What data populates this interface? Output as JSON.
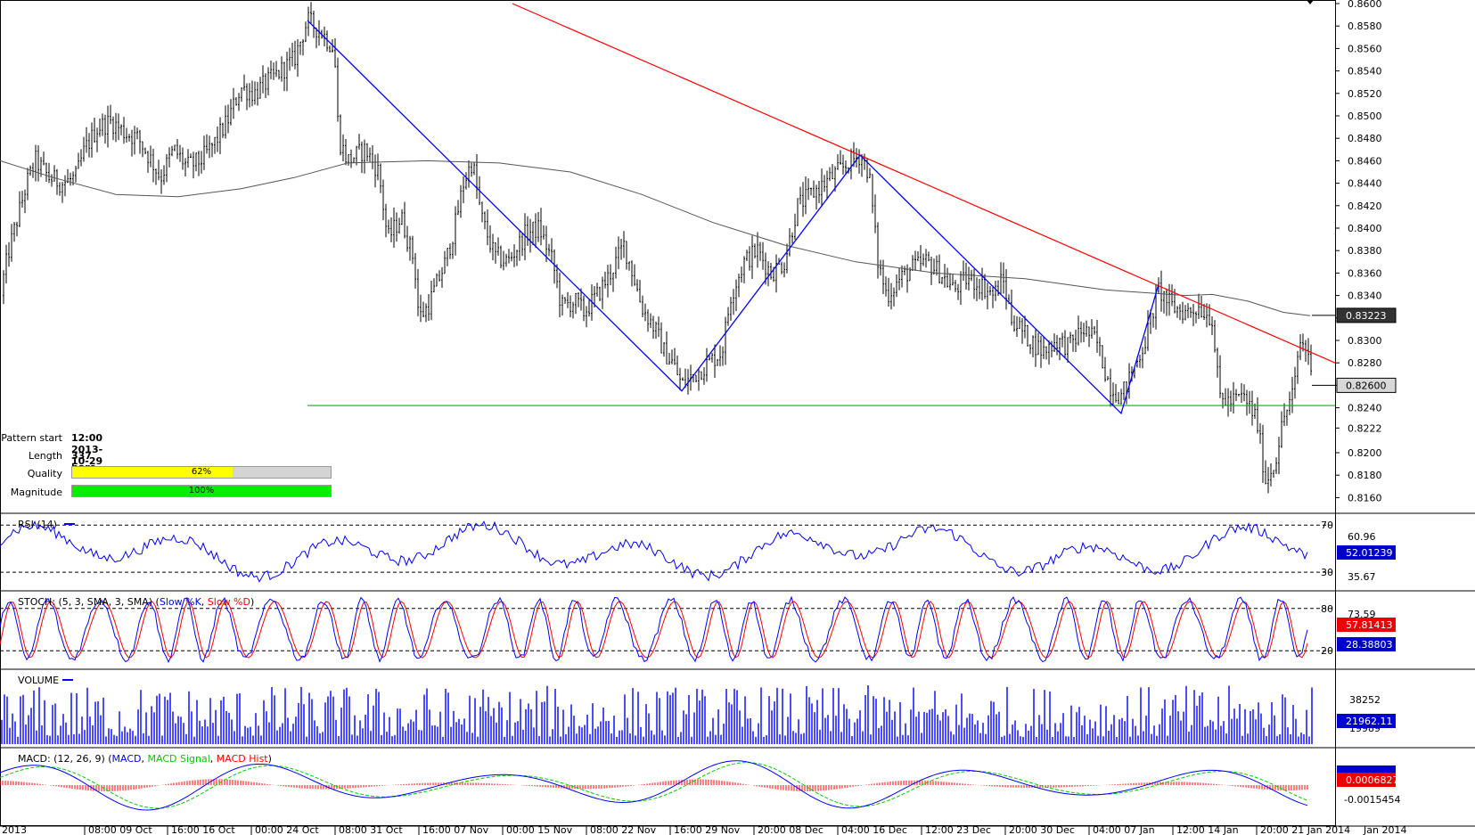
{
  "pattern_info": {
    "start_label": "Pattern start",
    "start_value": "12:00 2013-10-29",
    "length_label": "Length",
    "length_value": "337 bars",
    "quality_label": "Quality",
    "quality_value": "62%",
    "quality_fraction": 0.62,
    "quality_color": "#ffff00",
    "magnitude_label": "Magnitude",
    "magnitude_value": "100%",
    "magnitude_fraction": 1.0,
    "magnitude_color": "#00ee00"
  },
  "chart_data": [
    {
      "type": "candlestick",
      "name": "price",
      "ylim": [
        0.815,
        0.86
      ],
      "y_ticks": [
        "0.8160",
        "0.8180",
        "0.8200",
        "0.8222",
        "0.8240",
        "0.8260",
        "0.8280",
        "0.8300",
        "0.8320",
        "0.8340",
        "0.8360",
        "0.8380",
        "0.8400",
        "0.8420",
        "0.8440",
        "0.8460",
        "0.8480",
        "0.8500",
        "0.8520",
        "0.8540",
        "0.8560",
        "0.8580",
        "0.8600"
      ],
      "x_labels": [
        "2013",
        "08:00 09 Oct",
        "16:00 16 Oct",
        "00:00 24 Oct",
        "08:00 31 Oct",
        "16:00 07 Nov",
        "00:00 15 Nov",
        "08:00 22 Nov",
        "16:00 29 Nov",
        "20:00 08 Dec",
        "04:00 16 Dec",
        "12:00 23 Dec",
        "20:00 30 Dec",
        "04:00 07 Jan",
        "12:00 14 Jan",
        "20:00 21 Jan 2014",
        "Jan 2014"
      ],
      "close_path": [
        [
          0,
          0.834
        ],
        [
          10,
          0.838
        ],
        [
          20,
          0.841
        ],
        [
          30,
          0.844
        ],
        [
          40,
          0.846
        ],
        [
          55,
          0.8445
        ],
        [
          70,
          0.844
        ],
        [
          85,
          0.8445
        ],
        [
          95,
          0.847
        ],
        [
          110,
          0.849
        ],
        [
          125,
          0.8495
        ],
        [
          140,
          0.8485
        ],
        [
          155,
          0.848
        ],
        [
          170,
          0.846
        ],
        [
          180,
          0.8445
        ],
        [
          195,
          0.847
        ],
        [
          210,
          0.8455
        ],
        [
          225,
          0.846
        ],
        [
          240,
          0.8475
        ],
        [
          255,
          0.8495
        ],
        [
          270,
          0.8525
        ],
        [
          285,
          0.852
        ],
        [
          300,
          0.853
        ],
        [
          315,
          0.854
        ],
        [
          330,
          0.855
        ],
        [
          345,
          0.8585
        ],
        [
          360,
          0.8575
        ],
        [
          375,
          0.856
        ],
        [
          380,
          0.848
        ],
        [
          390,
          0.846
        ],
        [
          410,
          0.847
        ],
        [
          425,
          0.845
        ],
        [
          435,
          0.839
        ],
        [
          450,
          0.841
        ],
        [
          465,
          0.837
        ],
        [
          470,
          0.832
        ],
        [
          480,
          0.833
        ],
        [
          490,
          0.835
        ],
        [
          500,
          0.837
        ],
        [
          510,
          0.84
        ],
        [
          520,
          0.844
        ],
        [
          530,
          0.846
        ],
        [
          540,
          0.841
        ],
        [
          555,
          0.8375
        ],
        [
          570,
          0.837
        ],
        [
          590,
          0.8395
        ],
        [
          605,
          0.84
        ],
        [
          620,
          0.837
        ],
        [
          630,
          0.833
        ],
        [
          645,
          0.8335
        ],
        [
          655,
          0.8325
        ],
        [
          670,
          0.834
        ],
        [
          685,
          0.836
        ],
        [
          700,
          0.8385
        ],
        [
          710,
          0.836
        ],
        [
          720,
          0.833
        ],
        [
          735,
          0.831
        ],
        [
          745,
          0.829
        ],
        [
          755,
          0.828
        ],
        [
          765,
          0.826
        ],
        [
          780,
          0.827
        ],
        [
          795,
          0.828
        ],
        [
          810,
          0.829
        ],
        [
          820,
          0.834
        ],
        [
          835,
          0.837
        ],
        [
          850,
          0.838
        ],
        [
          865,
          0.836
        ],
        [
          880,
          0.837
        ],
        [
          895,
          0.842
        ],
        [
          910,
          0.843
        ],
        [
          925,
          0.844
        ],
        [
          940,
          0.845
        ],
        [
          955,
          0.846
        ],
        [
          965,
          0.8465
        ],
        [
          975,
          0.845
        ],
        [
          985,
          0.837
        ],
        [
          995,
          0.834
        ],
        [
          1010,
          0.8355
        ],
        [
          1025,
          0.8365
        ],
        [
          1040,
          0.837
        ],
        [
          1055,
          0.836
        ],
        [
          1070,
          0.8345
        ],
        [
          1085,
          0.8355
        ],
        [
          1100,
          0.835
        ],
        [
          1115,
          0.834
        ],
        [
          1125,
          0.8355
        ],
        [
          1135,
          0.832
        ],
        [
          1150,
          0.8305
        ],
        [
          1170,
          0.829
        ],
        [
          1185,
          0.83
        ],
        [
          1200,
          0.8295
        ],
        [
          1215,
          0.831
        ],
        [
          1230,
          0.83
        ],
        [
          1245,
          0.826
        ],
        [
          1258,
          0.825
        ],
        [
          1270,
          0.827
        ],
        [
          1285,
          0.83
        ],
        [
          1300,
          0.8345
        ],
        [
          1315,
          0.833
        ],
        [
          1330,
          0.8325
        ],
        [
          1345,
          0.833
        ],
        [
          1360,
          0.832
        ],
        [
          1368,
          0.825
        ],
        [
          1380,
          0.8245
        ],
        [
          1395,
          0.825
        ],
        [
          1410,
          0.823
        ],
        [
          1420,
          0.8175
        ],
        [
          1430,
          0.819
        ],
        [
          1440,
          0.823
        ],
        [
          1452,
          0.8255
        ],
        [
          1458,
          0.83
        ],
        [
          1468,
          0.829
        ],
        [
          1472,
          0.826
        ]
      ],
      "moving_average": [
        [
          0,
          0.846
        ],
        [
          60,
          0.8445
        ],
        [
          130,
          0.843
        ],
        [
          200,
          0.8428
        ],
        [
          270,
          0.8435
        ],
        [
          330,
          0.8445
        ],
        [
          390,
          0.8458
        ],
        [
          480,
          0.846
        ],
        [
          560,
          0.8458
        ],
        [
          640,
          0.845
        ],
        [
          720,
          0.843
        ],
        [
          800,
          0.8405
        ],
        [
          880,
          0.8385
        ],
        [
          960,
          0.837
        ],
        [
          1050,
          0.836
        ],
        [
          1150,
          0.8355
        ],
        [
          1240,
          0.8345
        ],
        [
          1330,
          0.834
        ],
        [
          1360,
          0.8341
        ],
        [
          1400,
          0.8335
        ],
        [
          1440,
          0.8325
        ],
        [
          1470,
          0.8322
        ]
      ],
      "zigzag": [
        [
          345,
          0.8585
        ],
        [
          765,
          0.8255
        ],
        [
          965,
          0.8465
        ],
        [
          1258,
          0.8235
        ],
        [
          1300,
          0.835
        ]
      ],
      "resistance_line": [
        [
          575,
          0.86
        ],
        [
          1498,
          0.828
        ]
      ],
      "support_level": 0.8242,
      "support_start_x": 345,
      "current_price_label": "0.82600",
      "current_price": 0.826,
      "ma_label": "0.83223",
      "ma_value": 0.83223,
      "colors": {
        "zigzag": "#0000ff",
        "resistance": "#ff0000",
        "support": "#00bb00",
        "ma": "#555555",
        "candles": "#000000"
      }
    },
    {
      "type": "line",
      "name": "rsi",
      "title": "RSI (14)",
      "ylim": [
        15,
        80
      ],
      "levels": [
        70,
        30
      ],
      "level_labels": [
        "70",
        "30"
      ],
      "tick_labels": [
        "60.96",
        "35.67"
      ],
      "last_value": "52.01239",
      "color": "#0000ff"
    },
    {
      "type": "line",
      "name": "stoch",
      "title_prefix": "STOCH: (5, 3, SMA, 3, SMA) (",
      "series_k": "Slow %K",
      "series_sep": ", ",
      "series_d": "Slow %D",
      "title_suffix": ")",
      "ylim": [
        0,
        100
      ],
      "levels": [
        80,
        20
      ],
      "level_labels": [
        "80",
        "20"
      ],
      "tick_label": "73.59",
      "last_k": "57.81413",
      "last_d": "28.38803",
      "color_k": "#0000ff",
      "color_d": "#ff0000"
    },
    {
      "type": "bar",
      "name": "volume",
      "title": "VOLUME",
      "tick_labels": [
        "38252",
        "19989"
      ],
      "last_value": "21962.11",
      "color": "#0000ff"
    },
    {
      "type": "line",
      "name": "macd",
      "title_prefix": "MACD: (12, 26, 9) (",
      "series_macd": "MACD",
      "series_signal": "MACD Signal",
      "series_hist": "MACD Hist",
      "title_suffix": ")",
      "tick_label": "-0.0015454",
      "last_value": "0.0006827",
      "color_macd": "#0000ff",
      "color_signal": "#00cc00",
      "color_hist": "#ff0000"
    }
  ]
}
